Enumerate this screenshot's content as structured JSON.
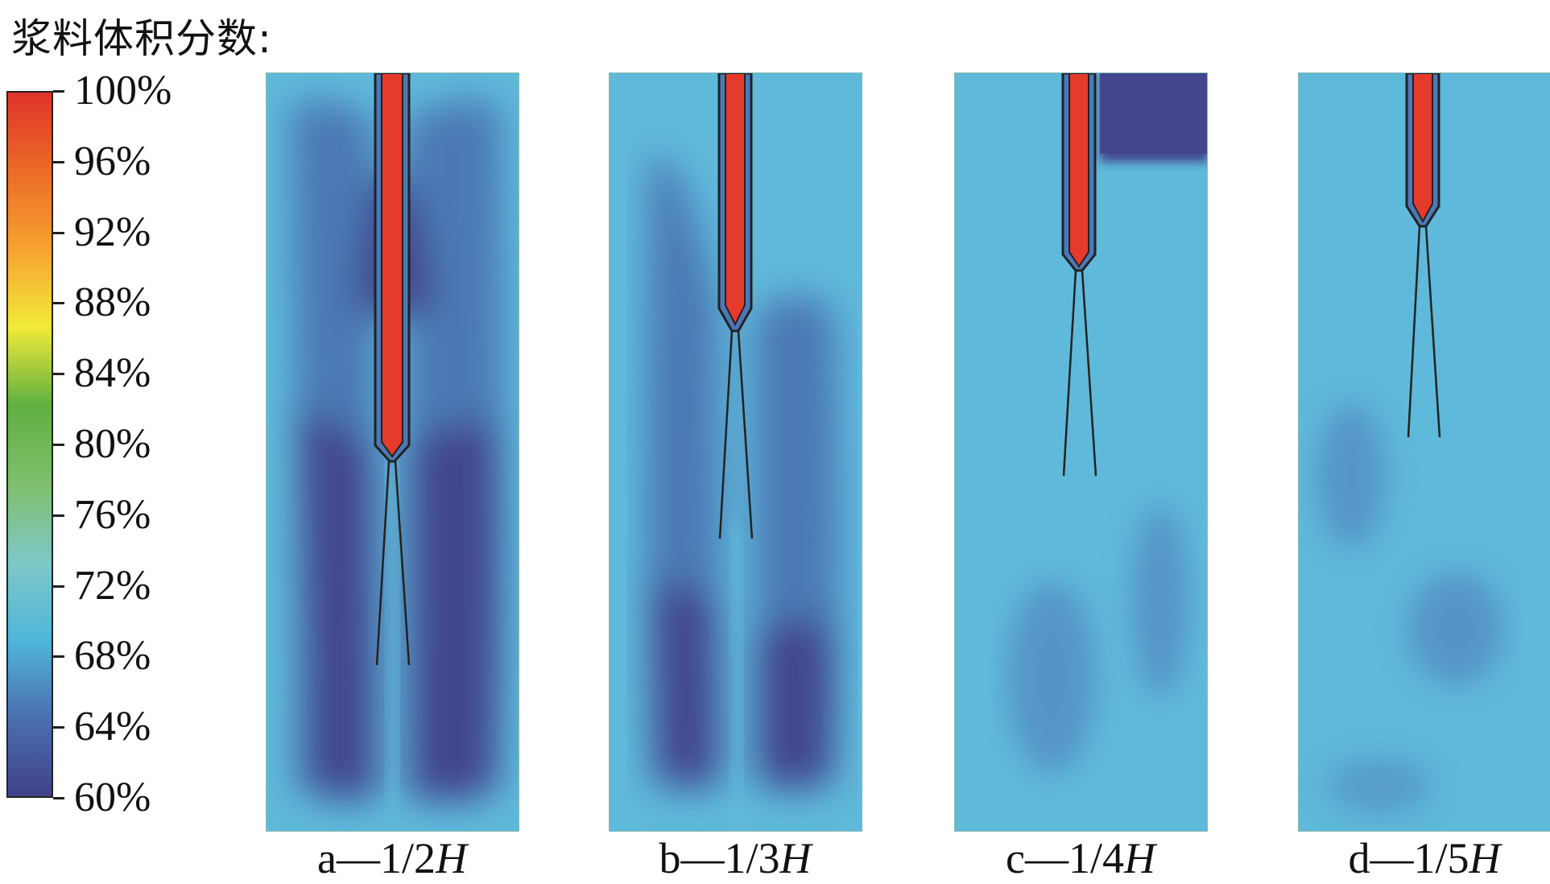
{
  "title": "浆料体积分数:",
  "colorbar": {
    "stops": [
      "#40418a",
      "#4b6fb0",
      "#4fb6da",
      "#7ec8c6",
      "#7fbf6c",
      "#5fb040",
      "#f2ea3a",
      "#f6a230",
      "#ec6b27",
      "#e0332a"
    ],
    "ticks": [
      "100%",
      "96%",
      "92%",
      "88%",
      "84%",
      "80%",
      "76%",
      "72%",
      "68%",
      "64%",
      "60%"
    ]
  },
  "colors": {
    "dark_blue": "#43468e",
    "mid_blue": "#4c79b6",
    "light_blue": "#5fb9da",
    "nozzle_red": "#e63a2c",
    "outline": "#222222"
  },
  "panels": [
    {
      "prefix": "a—1/2",
      "italic": "H"
    },
    {
      "prefix": "b—1/3",
      "italic": "H"
    },
    {
      "prefix": "c—1/4",
      "italic": "H"
    },
    {
      "prefix": "d—1/5",
      "italic": "H"
    }
  ]
}
